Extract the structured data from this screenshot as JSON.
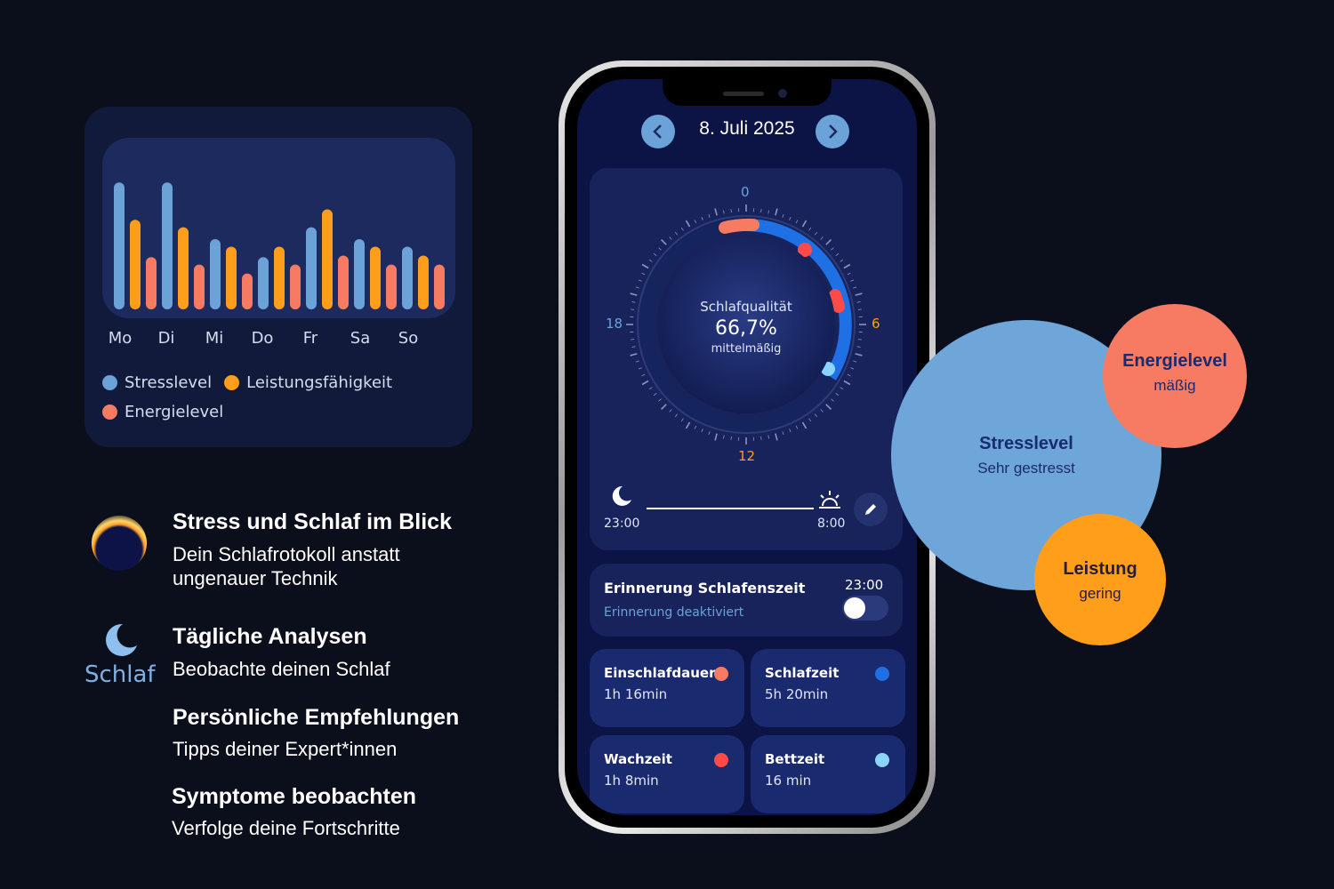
{
  "colors": {
    "stress": "#6ba3d9",
    "performance": "#ff9e1b",
    "energy": "#f77b62",
    "background": "#0b0f1c"
  },
  "chart_data": {
    "type": "bar",
    "categories": [
      "Mo",
      "Di",
      "Mi",
      "Do",
      "Fr",
      "Sa",
      "So"
    ],
    "series": [
      {
        "name": "Stresslevel",
        "values": [
          85,
          85,
          47,
          35,
          55,
          47,
          42
        ]
      },
      {
        "name": "Leistungsfähigkeit",
        "values": [
          60,
          55,
          42,
          42,
          67,
          42,
          36
        ]
      },
      {
        "name": "Energielevel",
        "values": [
          35,
          30,
          24,
          30,
          36,
          30,
          30
        ]
      }
    ],
    "ylim": [
      0,
      100
    ],
    "grid": false,
    "legend": "bottom"
  },
  "features": [
    {
      "title": "Stress und Schlaf im Blick",
      "subtitle": "Dein Schlafrotokoll anstatt ungenauer Technik"
    },
    {
      "title": "Tägliche Analysen",
      "subtitle": "Beobachte deinen Schlaf"
    },
    {
      "title": "Persönliche Empfehlungen",
      "subtitle": "Tipps deiner Expert*innen"
    },
    {
      "title": "Symptome beobachten",
      "subtitle": "Verfolge deine Fortschritte"
    }
  ],
  "logo": {
    "text": "Schlaf",
    "icon": "moon-icon"
  },
  "phone": {
    "date": "8. Juli 2025",
    "prev_icon": "chevron-left-icon",
    "next_icon": "chevron-right-icon",
    "dial": {
      "labels": {
        "top": "0",
        "right": "6",
        "bottom": "12",
        "left": "18"
      },
      "quality_title": "Schlafqualität",
      "quality_value": "66,7%",
      "quality_label": "mittelmäßig",
      "quality_percent": 66.7
    },
    "sleep_start": "23:00",
    "sleep_end": "8:00",
    "reminder": {
      "title": "Erinnerung Schlafenszeit",
      "time": "23:00",
      "status": "Erinnerung deaktiviert",
      "enabled": false
    },
    "stats": [
      {
        "title": "Einschlafdauer",
        "value": "1h 16min",
        "color": "#f77b62"
      },
      {
        "title": "Schlafzeit",
        "value": "5h 20min",
        "color": "#1f6fe5"
      },
      {
        "title": "Wachzeit",
        "value": "1h 8min",
        "color": "#ff4a4a"
      },
      {
        "title": "Bettzeit",
        "value": "16 min",
        "color": "#8ad4ff"
      }
    ]
  },
  "bubbles": {
    "stress": {
      "title": "Stresslevel",
      "subtitle": "Sehr gestresst"
    },
    "energy": {
      "title": "Energielevel",
      "subtitle": "mäßig"
    },
    "performance": {
      "title": "Leistung",
      "subtitle": "gering"
    }
  }
}
